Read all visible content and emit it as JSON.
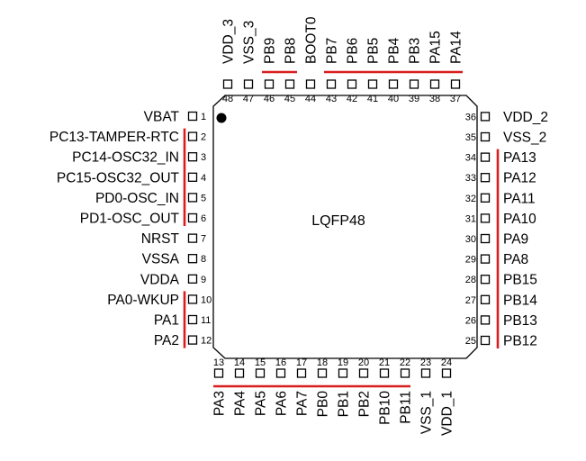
{
  "package": {
    "label": "LQFP48"
  },
  "colors": {
    "group_bar": "#d81e1e",
    "outline": "#000000"
  },
  "pins": {
    "left": [
      {
        "num": "1",
        "name": "VBAT"
      },
      {
        "num": "2",
        "name": "PC13-TAMPER-RTC"
      },
      {
        "num": "3",
        "name": "PC14-OSC32_IN"
      },
      {
        "num": "4",
        "name": "PC15-OSC32_OUT"
      },
      {
        "num": "5",
        "name": "PD0-OSC_IN"
      },
      {
        "num": "6",
        "name": "PD1-OSC_OUT"
      },
      {
        "num": "7",
        "name": "NRST"
      },
      {
        "num": "8",
        "name": "VSSA"
      },
      {
        "num": "9",
        "name": "VDDA"
      },
      {
        "num": "10",
        "name": "PA0-WKUP"
      },
      {
        "num": "11",
        "name": "PA1"
      },
      {
        "num": "12",
        "name": "PA2"
      }
    ],
    "bottom": [
      {
        "num": "13",
        "name": "PA3"
      },
      {
        "num": "14",
        "name": "PA4"
      },
      {
        "num": "15",
        "name": "PA5"
      },
      {
        "num": "16",
        "name": "PA6"
      },
      {
        "num": "17",
        "name": "PA7"
      },
      {
        "num": "18",
        "name": "PB0"
      },
      {
        "num": "19",
        "name": "PB1"
      },
      {
        "num": "20",
        "name": "PB2"
      },
      {
        "num": "21",
        "name": "PB10"
      },
      {
        "num": "22",
        "name": "PB11"
      },
      {
        "num": "23",
        "name": "VSS_1"
      },
      {
        "num": "24",
        "name": "VDD_1"
      }
    ],
    "right": [
      {
        "num": "25",
        "name": "PB12"
      },
      {
        "num": "26",
        "name": "PB13"
      },
      {
        "num": "27",
        "name": "PB14"
      },
      {
        "num": "28",
        "name": "PB15"
      },
      {
        "num": "29",
        "name": "PA8"
      },
      {
        "num": "30",
        "name": "PA9"
      },
      {
        "num": "31",
        "name": "PA10"
      },
      {
        "num": "32",
        "name": "PA11"
      },
      {
        "num": "33",
        "name": "PA12"
      },
      {
        "num": "34",
        "name": "PA13"
      },
      {
        "num": "35",
        "name": "VSS_2"
      },
      {
        "num": "36",
        "name": "VDD_2"
      }
    ],
    "top": [
      {
        "num": "37",
        "name": "PA14"
      },
      {
        "num": "38",
        "name": "PA15"
      },
      {
        "num": "39",
        "name": "PB3"
      },
      {
        "num": "40",
        "name": "PB4"
      },
      {
        "num": "41",
        "name": "PB5"
      },
      {
        "num": "42",
        "name": "PB6"
      },
      {
        "num": "43",
        "name": "PB7"
      },
      {
        "num": "44",
        "name": "BOOT0"
      },
      {
        "num": "45",
        "name": "PB8"
      },
      {
        "num": "46",
        "name": "PB9"
      },
      {
        "num": "47",
        "name": "VSS_3"
      },
      {
        "num": "48",
        "name": "VDD_3"
      }
    ]
  },
  "groups": {
    "left": [
      [
        2,
        6
      ],
      [
        10,
        12
      ]
    ],
    "bottom": [
      [
        13,
        22
      ]
    ],
    "right": [
      [
        25,
        34
      ]
    ],
    "top": [
      [
        37,
        43
      ],
      [
        45,
        46
      ]
    ]
  }
}
